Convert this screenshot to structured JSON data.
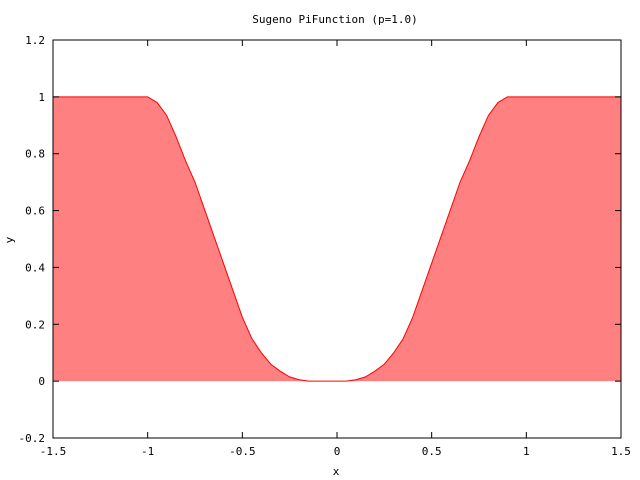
{
  "chart_data": {
    "type": "area",
    "title": "Sugeno PiFunction (p=1.0)",
    "xlabel": "x",
    "ylabel": "y",
    "xlim": [
      -1.5,
      1.5
    ],
    "ylim": [
      -0.2,
      1.2
    ],
    "x_ticks": [
      "-1.5",
      "-1",
      "-0.5",
      "0",
      "0.5",
      "1",
      "1.5"
    ],
    "y_ticks": [
      "-0.2",
      "0",
      "0.2",
      "0.4",
      "0.6",
      "0.8",
      "1",
      "1.2"
    ],
    "grid": false,
    "fill_color": "#ff8080",
    "line_color": "#ff0000",
    "series": [
      {
        "x": [
          -1.5,
          -1.0,
          -0.95,
          -0.9,
          -0.85,
          -0.8,
          -0.75,
          -0.7,
          -0.65,
          -0.6,
          -0.55,
          -0.5,
          -0.45,
          -0.4,
          -0.35,
          -0.3,
          -0.25,
          -0.2,
          -0.15,
          -0.1,
          -0.05,
          0.0,
          0.05,
          0.1,
          0.15,
          0.2,
          0.25,
          0.3,
          0.35,
          0.4,
          0.45,
          0.5,
          0.55,
          0.6,
          0.65,
          0.7,
          0.75,
          0.8,
          0.85,
          0.9,
          0.95,
          1.0,
          1.5
        ],
        "y": [
          1.0,
          1.0,
          0.98,
          0.935,
          0.86,
          0.775,
          0.7,
          0.605,
          0.51,
          0.415,
          0.32,
          0.225,
          0.15,
          0.1,
          0.06,
          0.035,
          0.015,
          0.005,
          0.0,
          0.0,
          0.0,
          0.0,
          0.0,
          0.005,
          0.015,
          0.035,
          0.06,
          0.1,
          0.15,
          0.225,
          0.32,
          0.415,
          0.51,
          0.605,
          0.7,
          0.775,
          0.86,
          0.935,
          0.98,
          1.0,
          1.0,
          1.0,
          1.0
        ]
      }
    ]
  }
}
